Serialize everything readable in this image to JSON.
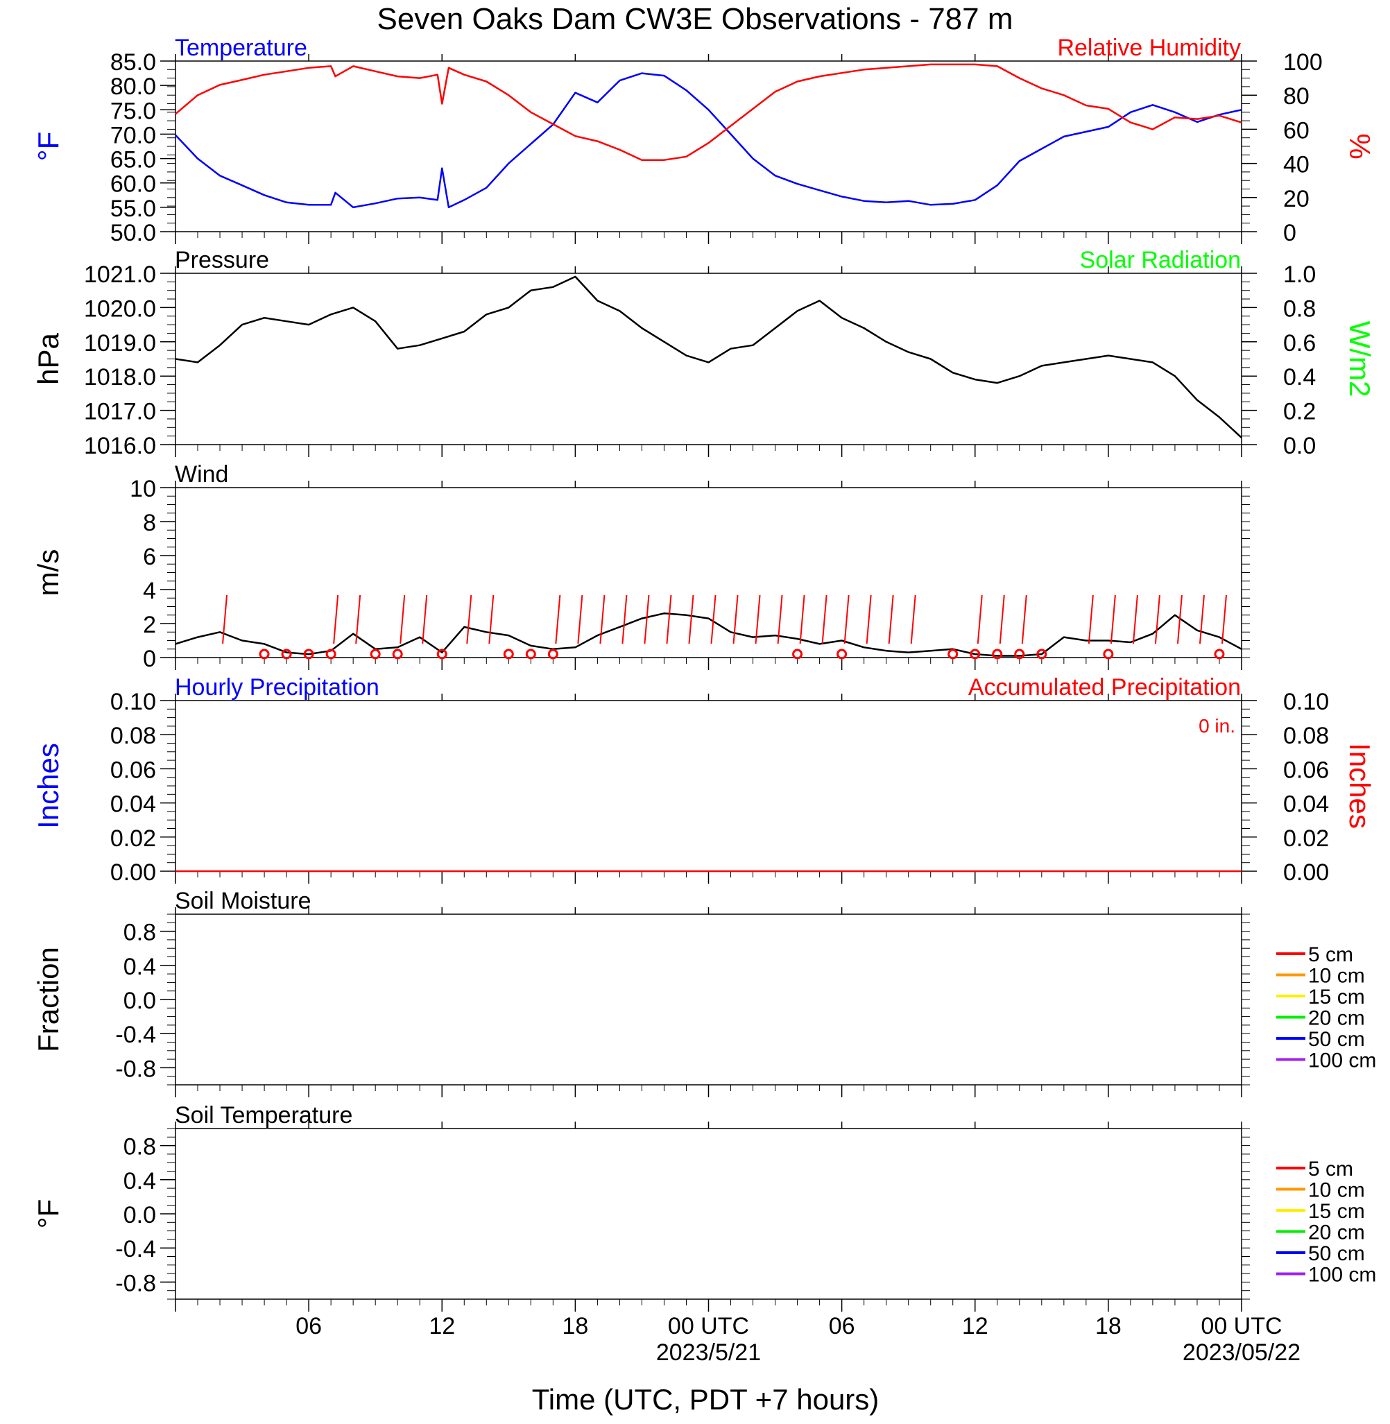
{
  "figure": {
    "title": "Seven Oaks Dam CW3E Observations - 787 m",
    "xlabel": "Time (UTC, PDT +7 hours)",
    "x_ticks": [
      "06",
      "12",
      "18",
      "00 UTC",
      "06",
      "12",
      "18",
      "00 UTC"
    ],
    "x_dates": [
      "2023/5/21",
      "2023/05/22"
    ],
    "colors": {
      "temperature": "#0000ff",
      "humidity": "#ff0000",
      "solar": "#00ff00",
      "black": "#000000"
    }
  },
  "chart_data": [
    {
      "panel": "temperature-humidity",
      "type": "line",
      "title_left": "Temperature",
      "title_right": "Relative Humidity",
      "ylabel_left": "°F",
      "ylabel_right": "%",
      "ylim_left": [
        50,
        85
      ],
      "ylim_right": [
        0,
        100
      ],
      "yticks_left": [
        "85.0",
        "80.0",
        "75.0",
        "70.0",
        "65.0",
        "60.0",
        "55.0",
        "50.0"
      ],
      "yticks_right": [
        "100",
        "80",
        "60",
        "40",
        "20",
        "0"
      ],
      "x_hours": [
        0,
        1,
        2,
        3,
        4,
        5,
        6,
        7,
        7.2,
        8,
        9,
        10,
        11,
        11.8,
        12,
        12.3,
        13,
        14,
        15,
        16,
        17,
        18,
        19,
        20,
        21,
        22,
        23,
        24,
        25,
        26,
        27,
        28,
        29,
        30,
        31,
        32,
        33,
        34,
        35,
        36,
        37,
        38,
        39,
        40,
        41,
        42,
        43,
        44,
        45,
        46,
        47,
        48
      ],
      "series": [
        {
          "name": "Temperature",
          "axis": "left",
          "values": [
            69.8,
            65.0,
            61.5,
            59.5,
            57.5,
            56.0,
            55.5,
            55.5,
            58.0,
            55.0,
            55.8,
            56.8,
            57.0,
            56.5,
            63.0,
            55.0,
            56.5,
            59.0,
            64.0,
            68.0,
            72.0,
            78.5,
            76.5,
            81.0,
            82.5,
            82.0,
            79.0,
            75.0,
            70.0,
            65.0,
            61.5,
            59.8,
            58.5,
            57.2,
            56.3,
            56.0,
            56.3,
            55.5,
            55.7,
            56.5,
            59.5,
            64.5,
            67.0,
            69.5,
            70.5,
            71.5,
            74.5,
            76.0,
            74.5,
            72.5,
            74.0,
            75.0
          ]
        },
        {
          "name": "Relative Humidity",
          "axis": "right",
          "values": [
            69,
            80,
            86,
            89,
            92,
            94,
            96,
            97,
            91,
            97,
            94,
            91,
            90,
            92,
            75,
            96,
            92,
            88,
            80,
            70,
            63,
            56,
            53,
            48,
            42,
            42,
            44,
            52,
            62,
            72,
            82,
            88,
            91,
            93,
            95,
            96,
            97,
            98,
            98,
            98,
            97,
            90,
            84,
            80,
            74,
            72,
            64,
            60,
            67,
            66,
            68,
            64
          ]
        }
      ]
    },
    {
      "panel": "pressure-solar",
      "type": "line",
      "title_left": "Pressure",
      "title_right": "Solar Radiation",
      "ylabel_left": "hPa",
      "ylabel_right": "W/m2",
      "ylim_left": [
        1016,
        1021
      ],
      "ylim_right": [
        0,
        1
      ],
      "yticks_left": [
        "1021.0",
        "1020.0",
        "1019.0",
        "1018.0",
        "1017.0",
        "1016.0"
      ],
      "yticks_right": [
        "1.0",
        "0.8",
        "0.6",
        "0.4",
        "0.2",
        "0.0"
      ],
      "x_hours": [
        0,
        1,
        2,
        3,
        4,
        5,
        6,
        7,
        8,
        9,
        10,
        11,
        12,
        13,
        14,
        15,
        16,
        17,
        18,
        19,
        20,
        21,
        22,
        23,
        24,
        25,
        26,
        27,
        28,
        29,
        30,
        31,
        32,
        33,
        34,
        35,
        36,
        37,
        38,
        39,
        40,
        41,
        42,
        43,
        44,
        45,
        46,
        47,
        48
      ],
      "series": [
        {
          "name": "Pressure",
          "axis": "left",
          "values": [
            1018.5,
            1018.4,
            1018.9,
            1019.5,
            1019.7,
            1019.6,
            1019.5,
            1019.8,
            1020.0,
            1019.6,
            1018.8,
            1018.9,
            1019.1,
            1019.3,
            1019.8,
            1020.0,
            1020.5,
            1020.6,
            1020.9,
            1020.2,
            1019.9,
            1019.4,
            1019.0,
            1018.6,
            1018.4,
            1018.8,
            1018.9,
            1019.4,
            1019.9,
            1020.2,
            1019.7,
            1019.4,
            1019.0,
            1018.7,
            1018.5,
            1018.1,
            1017.9,
            1017.8,
            1018.0,
            1018.3,
            1018.4,
            1018.5,
            1018.6,
            1018.5,
            1018.4,
            1018.0,
            1017.3,
            1016.8,
            1016.2
          ]
        }
      ]
    },
    {
      "panel": "wind",
      "type": "line",
      "title_left": "Wind",
      "ylabel_left": "m/s",
      "ylim_left": [
        0,
        10
      ],
      "yticks_left": [
        "10",
        "8",
        "6",
        "4",
        "2",
        "0"
      ],
      "x_hours": [
        0,
        1,
        2,
        3,
        4,
        5,
        6,
        7,
        8,
        9,
        10,
        11,
        12,
        13,
        14,
        15,
        16,
        17,
        18,
        19,
        20,
        21,
        22,
        23,
        24,
        25,
        26,
        27,
        28,
        29,
        30,
        31,
        32,
        33,
        34,
        35,
        36,
        37,
        38,
        39,
        40,
        41,
        42,
        43,
        44,
        45,
        46,
        47,
        48
      ],
      "series": [
        {
          "name": "Wind Speed",
          "axis": "left",
          "values": [
            0.8,
            1.2,
            1.5,
            1.0,
            0.8,
            0.3,
            0.2,
            0.4,
            1.4,
            0.5,
            0.6,
            1.2,
            0.3,
            1.8,
            1.5,
            1.3,
            0.7,
            0.5,
            0.6,
            1.3,
            1.8,
            2.3,
            2.6,
            2.5,
            2.3,
            1.5,
            1.2,
            1.3,
            1.1,
            0.8,
            1.0,
            0.6,
            0.4,
            0.3,
            0.4,
            0.5,
            0.2,
            0.1,
            0.1,
            0.2,
            1.2,
            1.0,
            1.0,
            0.9,
            1.4,
            2.5,
            1.6,
            1.2,
            0.5
          ]
        }
      ],
      "barbs_hours": [
        2,
        7,
        8,
        10,
        11,
        13,
        14,
        17,
        18,
        19,
        20,
        21,
        22,
        23,
        24,
        25,
        26,
        27,
        28,
        29,
        30,
        31,
        32,
        33,
        36,
        37,
        38,
        41,
        42,
        43,
        44,
        45,
        46,
        47
      ],
      "calm_hours": [
        3,
        4,
        5,
        6,
        8,
        9,
        11,
        14,
        15,
        16,
        27,
        29,
        34,
        35,
        36,
        37,
        38,
        41,
        46
      ]
    },
    {
      "panel": "precipitation",
      "type": "line",
      "title_left": "Hourly Precipitation",
      "title_right": "Accumulated Precipitation",
      "annotation": "0 in.",
      "ylabel_left": "Inches",
      "ylabel_right": "Inches",
      "ylim_left": [
        0,
        0.1
      ],
      "ylim_right": [
        0,
        0.1
      ],
      "yticks_left": [
        "0.10",
        "0.08",
        "0.06",
        "0.04",
        "0.02",
        "0.00"
      ],
      "yticks_right": [
        "0.10",
        "0.08",
        "0.06",
        "0.04",
        "0.02",
        "0.00"
      ],
      "x_hours": [
        0,
        48
      ],
      "series": [
        {
          "name": "Accumulated Precipitation",
          "axis": "right",
          "values": [
            0,
            0
          ]
        }
      ]
    },
    {
      "panel": "soil-moisture",
      "type": "line",
      "title_left": "Soil Moisture",
      "ylabel_left": "Fraction",
      "ylim_left": [
        -1,
        1
      ],
      "yticks_left": [
        "0.8",
        "0.4",
        "0.0",
        "-0.4",
        "-0.8"
      ],
      "legend": [
        "5 cm",
        "10 cm",
        "15 cm",
        "20 cm",
        "50 cm",
        "100 cm"
      ],
      "legend_colors": [
        "#ff0000",
        "#ff9900",
        "#ffee00",
        "#00ee00",
        "#0000ff",
        "#a020f0"
      ],
      "series": []
    },
    {
      "panel": "soil-temperature",
      "type": "line",
      "title_left": "Soil Temperature",
      "ylabel_left": "°F",
      "ylim_left": [
        -1,
        1
      ],
      "yticks_left": [
        "0.8",
        "0.4",
        "0.0",
        "-0.4",
        "-0.8"
      ],
      "legend": [
        "5 cm",
        "10 cm",
        "15 cm",
        "20 cm",
        "50 cm",
        "100 cm"
      ],
      "legend_colors": [
        "#ff0000",
        "#ff9900",
        "#ffee00",
        "#00ee00",
        "#0000ff",
        "#a020f0"
      ],
      "series": []
    }
  ]
}
